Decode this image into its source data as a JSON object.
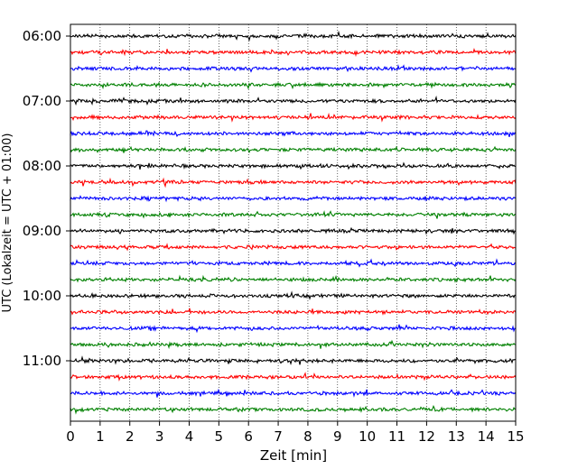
{
  "chart_data": {
    "type": "line",
    "title": "",
    "xlabel": "Zeit  [min]",
    "ylabel": "UTC (Lokalzeit = UTC + 01:00)",
    "xlim": [
      0,
      15
    ],
    "x_ticks": [
      0,
      1,
      2,
      3,
      4,
      5,
      6,
      7,
      8,
      9,
      10,
      11,
      12,
      13,
      14,
      15
    ],
    "y_tick_labels": [
      "06:00",
      "07:00",
      "08:00",
      "09:00",
      "10:00",
      "11:00"
    ],
    "grid": "vertical dotted lines at every minute",
    "trace_minutes_per_line": 15,
    "trace_start_times": [
      "06:00",
      "06:15",
      "06:30",
      "06:45",
      "07:00",
      "07:15",
      "07:30",
      "07:45",
      "08:00",
      "08:15",
      "08:30",
      "08:45",
      "09:00",
      "09:15",
      "09:30",
      "09:45",
      "10:00",
      "10:15",
      "10:30",
      "10:45",
      "11:00",
      "11:15",
      "11:30",
      "11:45"
    ],
    "color_cycle": [
      "#000000",
      "#ff0000",
      "#0000ff",
      "#008000"
    ]
  }
}
